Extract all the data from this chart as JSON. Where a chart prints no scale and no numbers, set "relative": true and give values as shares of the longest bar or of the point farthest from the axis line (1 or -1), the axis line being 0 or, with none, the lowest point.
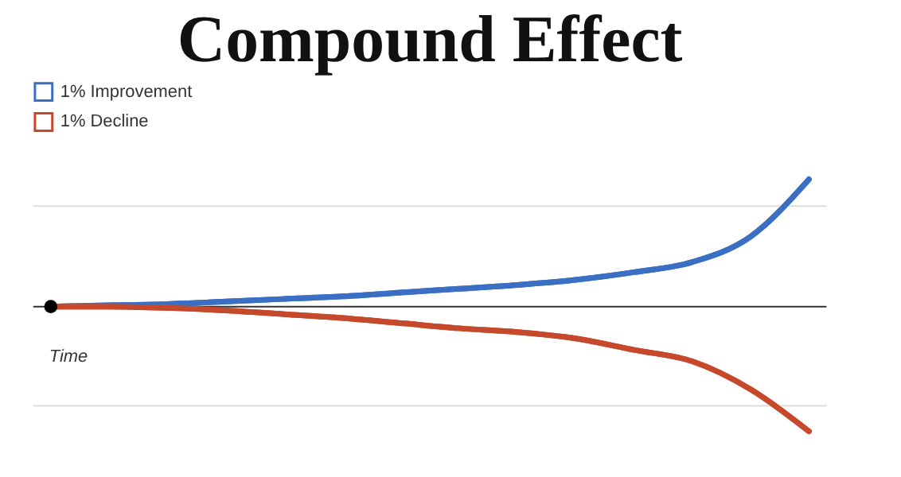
{
  "chart_data": {
    "type": "line",
    "title": "Compound Effect",
    "relative": true,
    "categories": [
      null,
      null,
      null,
      null,
      null,
      null,
      null,
      null,
      null,
      null,
      null,
      null,
      null,
      null
    ],
    "series": [
      {
        "name": "1% Improvement",
        "color": "#3a6fc4",
        "values": [
          0,
          0.01,
          0.02,
          0.04,
          0.06,
          0.08,
          0.11,
          0.14,
          0.17,
          0.21,
          0.27,
          0.35,
          0.55,
          1
        ]
      },
      {
        "name": "1% Decline",
        "color": "#c7492c",
        "values": [
          0,
          0,
          -0.01,
          -0.03,
          -0.06,
          -0.09,
          -0.13,
          -0.17,
          -0.2,
          -0.25,
          -0.34,
          -0.43,
          -0.65,
          -0.98
        ]
      }
    ],
    "ref_lines": [
      {
        "axis": "y",
        "value": 0.79,
        "label": null,
        "color": "#dddddd"
      },
      {
        "axis": "y",
        "value": -0.78,
        "label": null,
        "color": "#dddddd"
      }
    ],
    "annotations": [
      "Time"
    ],
    "legend": "top",
    "grid": false
  }
}
